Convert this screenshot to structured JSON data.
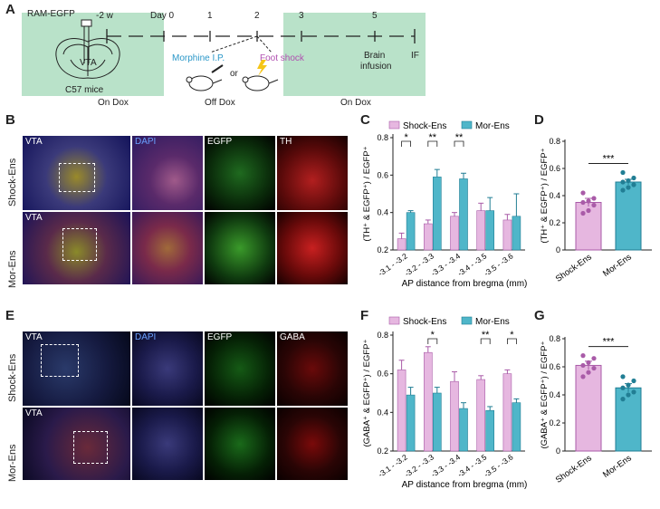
{
  "panel_letters": {
    "A": "A",
    "B": "B",
    "C": "C",
    "D": "D",
    "E": "E",
    "F": "F",
    "G": "G"
  },
  "timeline": {
    "mouse_label": "RAM-EGFP",
    "region": "VTA",
    "mouse_strain": "C57 mice",
    "days": [
      "-2 w",
      "Day 0",
      "1",
      "2",
      "3",
      "5"
    ],
    "treatments": [
      "Morphine I.P.",
      "or",
      "Foot shock"
    ],
    "brain_infusion": [
      "Brain",
      "infusion"
    ],
    "end_label": "IF",
    "dox": [
      "On Dox",
      "Off  Dox",
      "On Dox"
    ],
    "colors": {
      "on_dox_bg": "#b9e2c9",
      "morphine": "#2a97c8",
      "shock": "#b04fb0"
    }
  },
  "micrographs": {
    "B": {
      "top_row": "Shock-Ens",
      "bottom_row": "Mor-Ens",
      "labels": [
        "VTA",
        "DAPI",
        "EGFP",
        "TH",
        "VTA"
      ]
    },
    "E": {
      "top_row": "Shock-Ens",
      "bottom_row": "Mor-Ens",
      "labels": [
        "VTA",
        "DAPI",
        "EGFP",
        "GABA",
        "VTA"
      ]
    }
  },
  "chart_data": [
    {
      "panel": "C",
      "type": "bar",
      "categories": [
        "-3.1 - -3.2",
        "-3.2 - -3.3",
        "-3.3 - -3.4",
        "-3.4 - -3.5",
        "-3.5 - -3.6"
      ],
      "series": [
        {
          "name": "Shock-Ens",
          "color": "#e6b7e0",
          "stroke": "#a95ba8",
          "values": [
            0.26,
            0.34,
            0.38,
            0.41,
            0.36
          ],
          "errors": [
            0.03,
            0.02,
            0.02,
            0.04,
            0.03
          ]
        },
        {
          "name": "Mor-Ens",
          "color": "#4fb6c9",
          "stroke": "#217e94",
          "values": [
            0.4,
            0.59,
            0.58,
            0.41,
            0.38
          ],
          "errors": [
            0.01,
            0.04,
            0.03,
            0.07,
            0.12
          ]
        }
      ],
      "significance": [
        "*",
        "**",
        "**",
        "",
        ""
      ],
      "ylim": [
        0.2,
        0.8
      ],
      "yticks": [
        0.2,
        0.4,
        0.6,
        0.8
      ],
      "ytick_labels": [
        "0.2",
        "0.4",
        "0.6",
        "0.8"
      ],
      "ylabel": "(TH⁺ & EGFP⁺) / EGFP⁺",
      "xlabel": "AP distance from bregma (mm)"
    },
    {
      "panel": "D",
      "type": "bar",
      "categories": [
        "Shock-Ens",
        "Mor-Ens"
      ],
      "values": [
        0.35,
        0.5
      ],
      "errors": [
        0.03,
        0.02
      ],
      "colors": [
        "#e6b7e0",
        "#4fb6c9"
      ],
      "strokes": [
        "#a95ba8",
        "#217e94"
      ],
      "points": [
        [
          0.27,
          0.29,
          0.33,
          0.35,
          0.36,
          0.38,
          0.42
        ],
        [
          0.44,
          0.46,
          0.48,
          0.5,
          0.51,
          0.53,
          0.57
        ]
      ],
      "significance": "***",
      "ylim": [
        0,
        0.8
      ],
      "yticks": [
        0,
        0.2,
        0.4,
        0.6,
        0.8
      ],
      "ytick_labels": [
        "0",
        "0.2",
        "0.4",
        "0.6",
        "0.8"
      ],
      "ylabel": "(TH⁺ & EGFP⁺) / EGFP⁺"
    },
    {
      "panel": "F",
      "type": "bar",
      "categories": [
        "-3.1 - -3.2",
        "-3.2 - -3.3",
        "-3.3 - -3.4",
        "-3.4 - -3.5",
        "-3.5 - -3.6"
      ],
      "series": [
        {
          "name": "Shock-Ens",
          "color": "#e6b7e0",
          "stroke": "#a95ba8",
          "values": [
            0.62,
            0.71,
            0.56,
            0.57,
            0.6
          ],
          "errors": [
            0.05,
            0.03,
            0.05,
            0.02,
            0.02
          ]
        },
        {
          "name": "Mor-Ens",
          "color": "#4fb6c9",
          "stroke": "#217e94",
          "values": [
            0.49,
            0.5,
            0.42,
            0.41,
            0.45
          ],
          "errors": [
            0.04,
            0.03,
            0.03,
            0.02,
            0.02
          ]
        }
      ],
      "significance": [
        "",
        "*",
        "",
        "**",
        "*"
      ],
      "ylim": [
        0.2,
        0.8
      ],
      "yticks": [
        0.2,
        0.4,
        0.6,
        0.8
      ],
      "ytick_labels": [
        "0.2",
        "0.4",
        "0.6",
        "0.8"
      ],
      "ylabel": "(GABA⁺ & EGFP⁺) / EGFP⁺",
      "xlabel": "AP distance from bregma (mm)"
    },
    {
      "panel": "G",
      "type": "bar",
      "categories": [
        "Shock-Ens",
        "Mor-Ens"
      ],
      "values": [
        0.61,
        0.45
      ],
      "errors": [
        0.03,
        0.03
      ],
      "colors": [
        "#e6b7e0",
        "#4fb6c9"
      ],
      "strokes": [
        "#a95ba8",
        "#217e94"
      ],
      "points": [
        [
          0.53,
          0.56,
          0.59,
          0.61,
          0.63,
          0.66,
          0.68
        ],
        [
          0.37,
          0.4,
          0.42,
          0.45,
          0.47,
          0.5,
          0.53
        ]
      ],
      "significance": "***",
      "ylim": [
        0,
        0.8
      ],
      "yticks": [
        0,
        0.2,
        0.4,
        0.6,
        0.8
      ],
      "ytick_labels": [
        "0",
        "0.2",
        "0.4",
        "0.6",
        "0.8"
      ],
      "ylabel": "(GABA⁺ & EGFP⁺) / EGFP⁺"
    }
  ]
}
